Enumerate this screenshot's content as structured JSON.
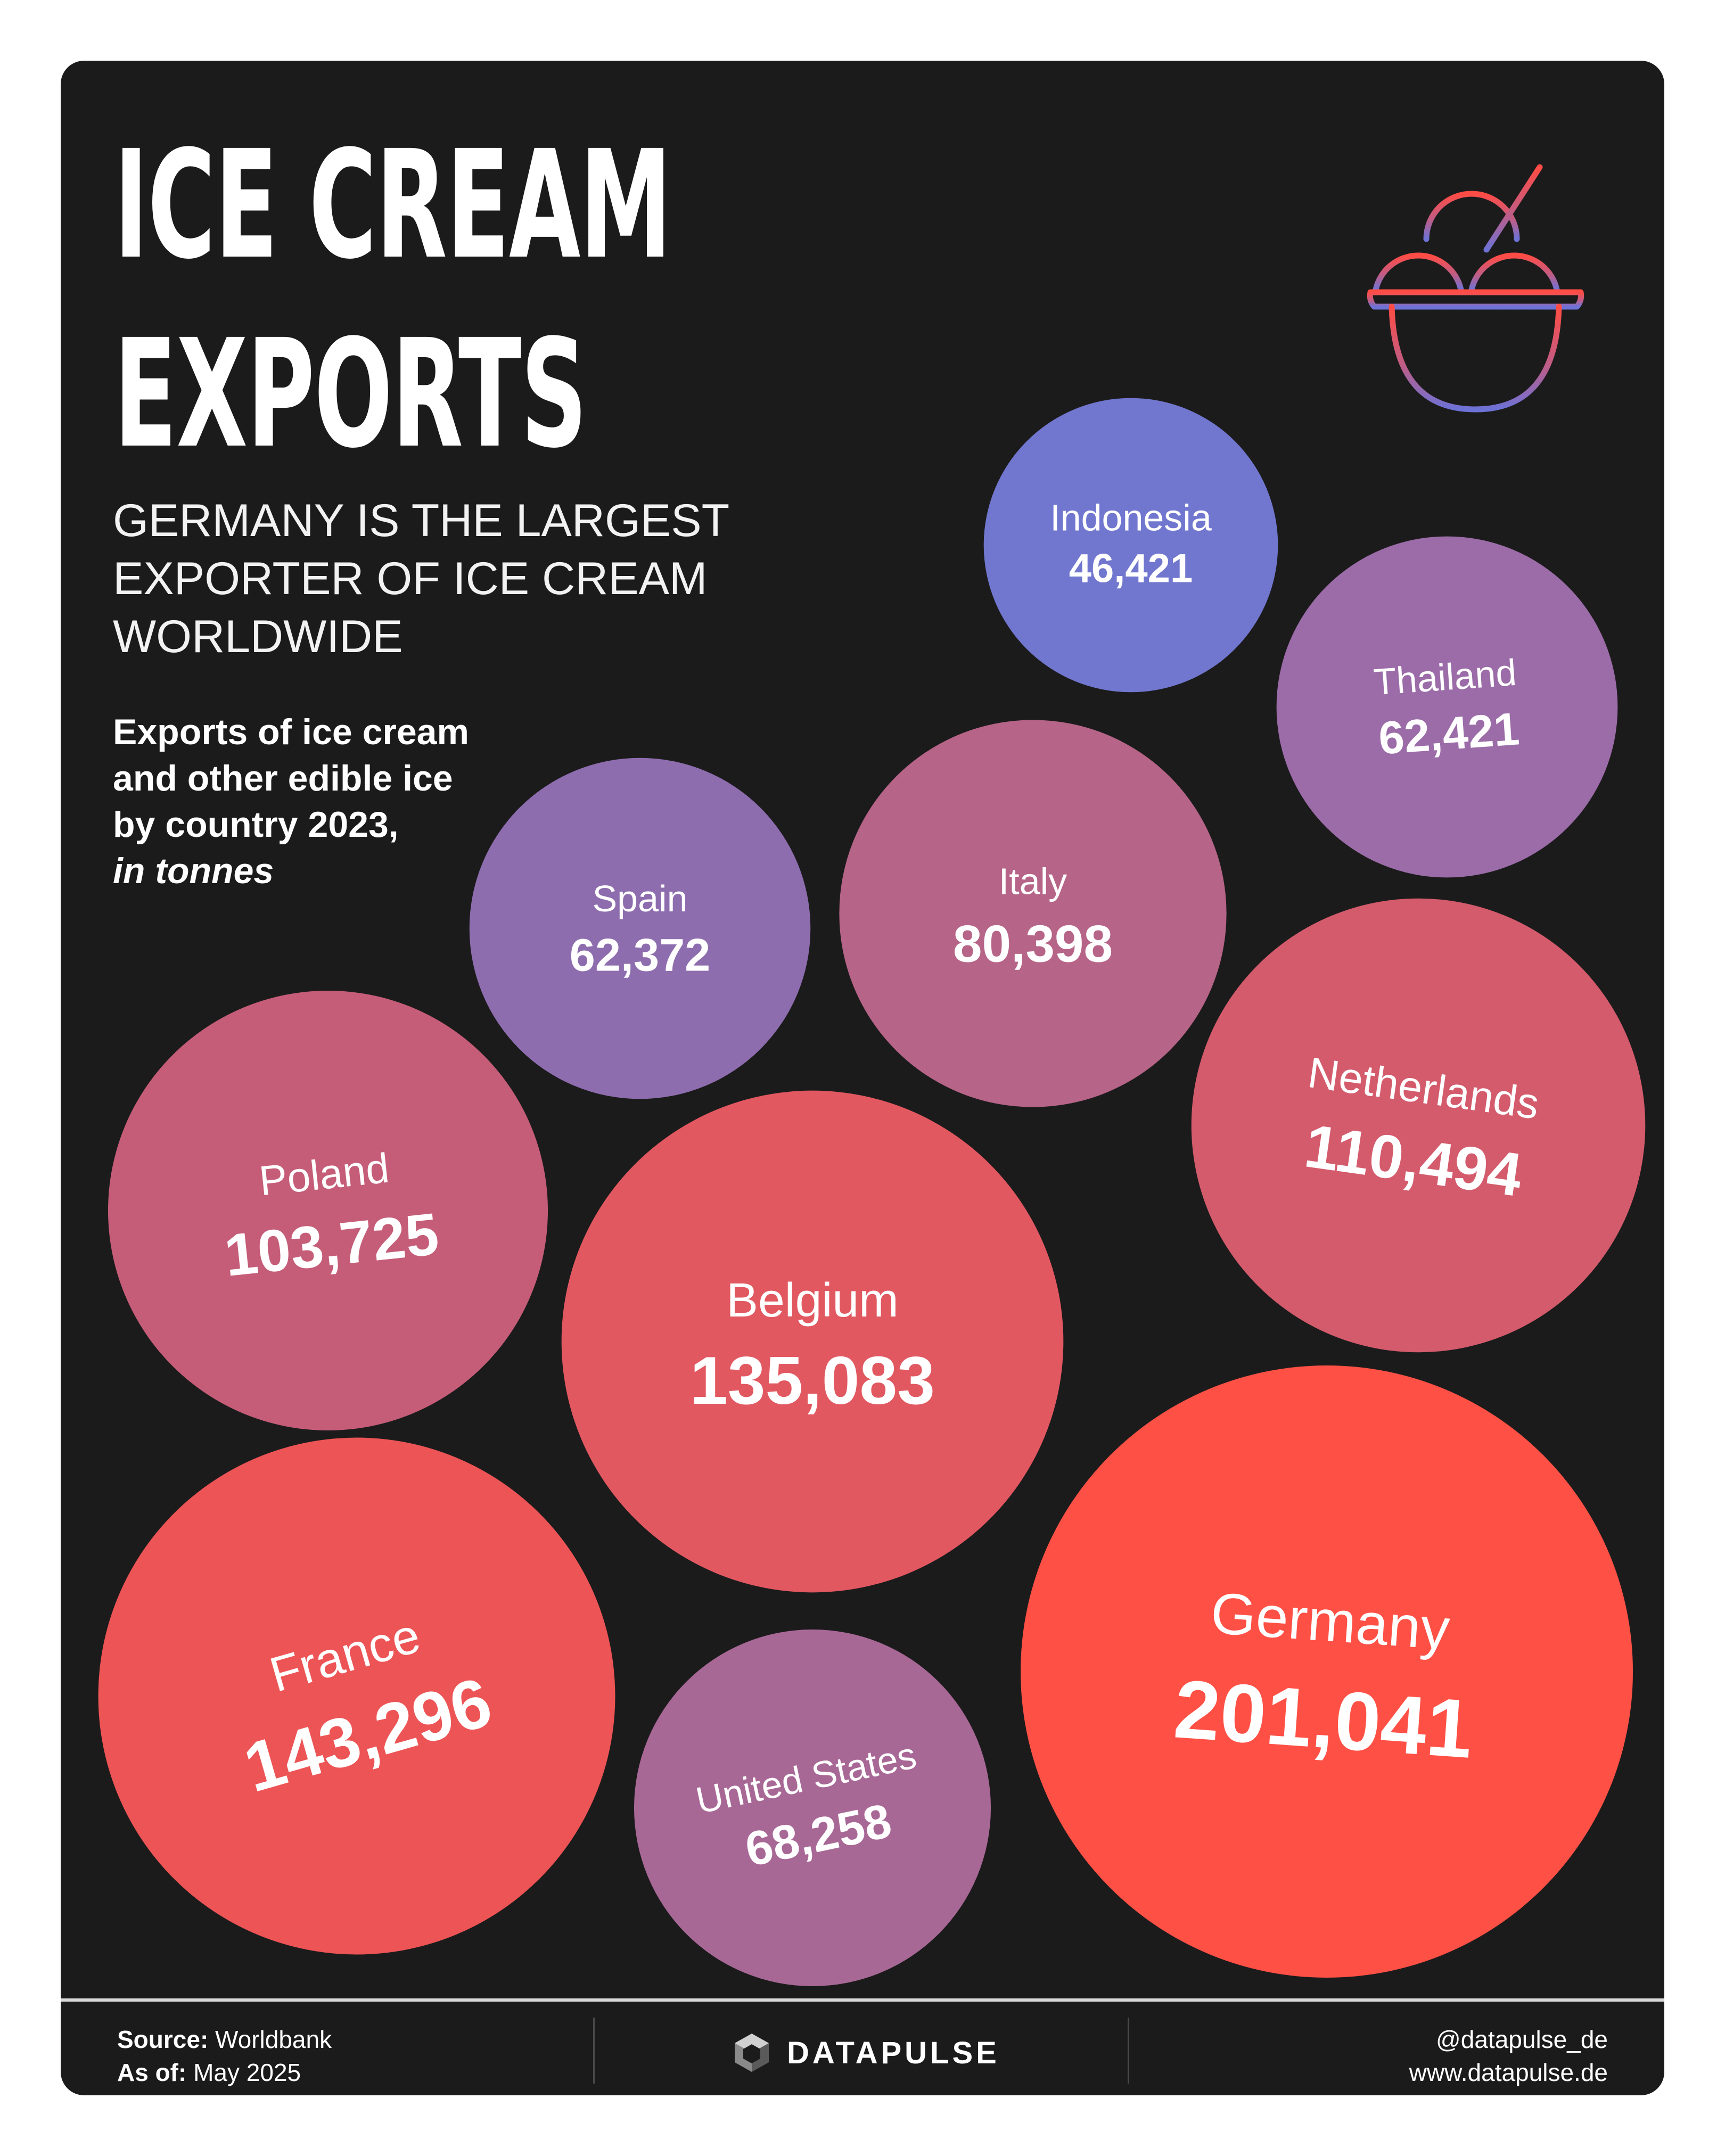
{
  "header": {
    "title_line1": "ICE CREAM",
    "title_line2": "EXPORTS",
    "subtitle_line1": "GERMANY IS THE LARGEST",
    "subtitle_line2": "EXPORTER OF ICE CREAM",
    "subtitle_line3": "WORLDWIDE",
    "desc_line1": "Exports of ice cream",
    "desc_line2": "and other edible ice",
    "desc_line3": "by country 2023,",
    "desc_unit": "in tonnes",
    "icon": "ice-cream-bowl-icon"
  },
  "chart_data": {
    "type": "bubble",
    "encoding": "circle area proportional to value",
    "unit": "tonnes",
    "year": 2023,
    "series": [
      {
        "name": "Indonesia",
        "value_label": "46,421",
        "value": 46421,
        "color": "#7177cf"
      },
      {
        "name": "Thailand",
        "value_label": "62,421",
        "value": 62421,
        "color": "#9b6ca8"
      },
      {
        "name": "Spain",
        "value_label": "62,372",
        "value": 62372,
        "color": "#8e6daf"
      },
      {
        "name": "Italy",
        "value_label": "80,398",
        "value": 80398,
        "color": "#b66487"
      },
      {
        "name": "Netherlands",
        "value_label": "110,494",
        "value": 110494,
        "color": "#d35b6c"
      },
      {
        "name": "Poland",
        "value_label": "103,725",
        "value": 103725,
        "color": "#c55d78"
      },
      {
        "name": "Belgium",
        "value_label": "135,083",
        "value": 135083,
        "color": "#e25861"
      },
      {
        "name": "France",
        "value_label": "143,296",
        "value": 143296,
        "color": "#ed5455"
      },
      {
        "name": "United States",
        "value_label": "68,258",
        "value": 68258,
        "color": "#a86896"
      },
      {
        "name": "Germany",
        "value_label": "201,041",
        "value": 201041,
        "color": "#ff5045"
      }
    ]
  },
  "footer": {
    "source_label": "Source:",
    "source_value": "Worldbank",
    "asof_label": "As of:",
    "asof_value": "May 2025",
    "brand": "DATAPULSE",
    "handle": "@datapulse_de",
    "website": "www.datapulse.de"
  }
}
